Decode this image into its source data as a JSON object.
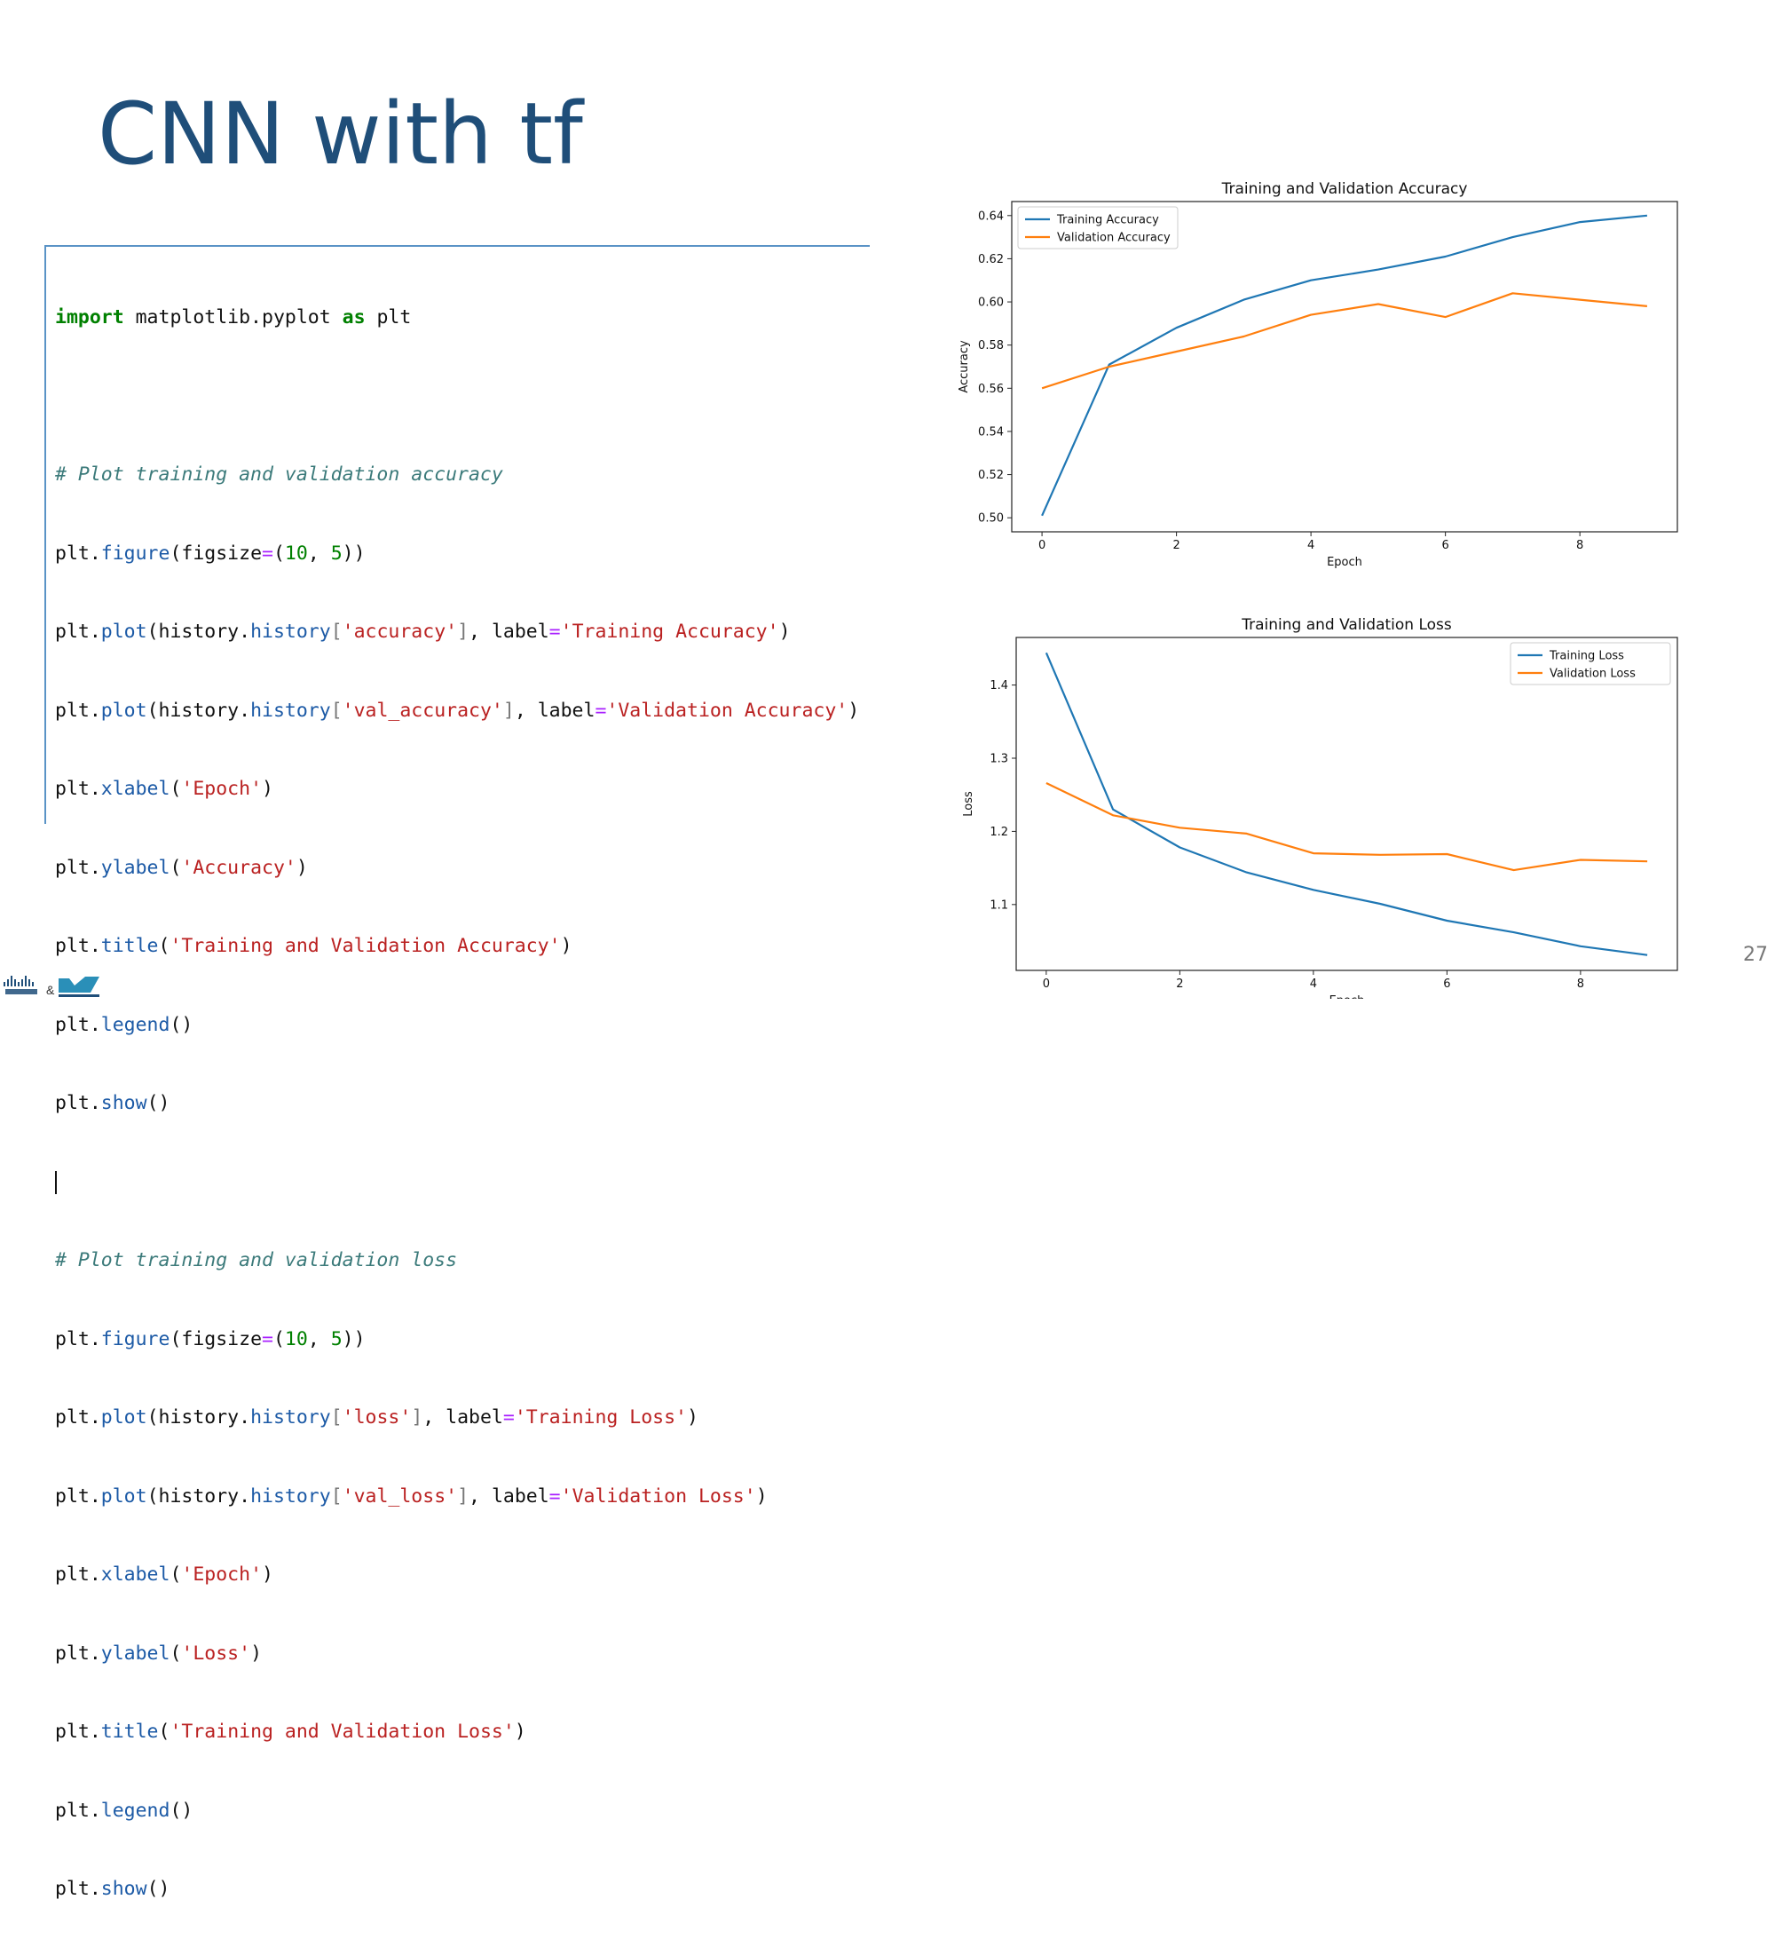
{
  "slide": {
    "title": "CNN with tf",
    "page_number": "27"
  },
  "code": {
    "import_kw": "import",
    "import_mod": " matplotlib.pyplot ",
    "as_kw": "as",
    "import_alias": " plt",
    "comment_accuracy": "# Plot training and validation accuracy",
    "comment_loss": "# Plot training and validation loss",
    "plt": "plt.",
    "figure": "figure",
    "figsize_arg": "figsize",
    "eq": "=",
    "paren_open": "(",
    "paren_close": ")",
    "num_10": "10",
    "comma_space": ", ",
    "num_5": "5",
    "plot": "plot",
    "history_prefix": "history.",
    "history": "history",
    "bracket_open": "[",
    "bracket_close": "]",
    "label_arg": "label",
    "str_accuracy": "'accuracy'",
    "str_val_accuracy": "'val_accuracy'",
    "str_training_accuracy": "'Training Accuracy'",
    "str_validation_accuracy": "'Validation Accuracy'",
    "str_loss": "'loss'",
    "str_val_loss": "'val_loss'",
    "str_training_loss": "'Training Loss'",
    "str_validation_loss": "'Validation Loss'",
    "xlabel": "xlabel",
    "ylabel": "ylabel",
    "title": "title",
    "legend": "legend",
    "show": "show",
    "str_epoch": "'Epoch'",
    "str_accuracy_label": "'Accuracy'",
    "str_loss_label": "'Loss'",
    "str_title_accuracy": "'Training and Validation Accuracy'",
    "str_title_loss": "'Training and Validation Loss'"
  },
  "chart_data": [
    {
      "type": "line",
      "title": "Training and Validation Accuracy",
      "xlabel": "Epoch",
      "ylabel": "Accuracy",
      "x": [
        0,
        1,
        2,
        3,
        4,
        5,
        6,
        7,
        8,
        9
      ],
      "xticks": [
        "0",
        "2",
        "4",
        "6",
        "8"
      ],
      "yticks": [
        "0.50",
        "0.52",
        "0.54",
        "0.56",
        "0.58",
        "0.60",
        "0.62",
        "0.64"
      ],
      "xlim": [
        -0.45,
        9.45
      ],
      "ylim": [
        0.4935,
        0.6465
      ],
      "legend_position": "upper-left",
      "grid": false,
      "series": [
        {
          "name": "Training Accuracy",
          "color": "#1f77b4",
          "values": [
            0.501,
            0.571,
            0.588,
            0.601,
            0.61,
            0.615,
            0.621,
            0.63,
            0.637,
            0.64
          ]
        },
        {
          "name": "Validation Accuracy",
          "color": "#ff7f0e",
          "values": [
            0.56,
            0.57,
            0.577,
            0.584,
            0.594,
            0.599,
            0.593,
            0.604,
            0.601,
            0.598
          ]
        }
      ]
    },
    {
      "type": "line",
      "title": "Training and Validation Loss",
      "xlabel": "Epoch",
      "ylabel": "Loss",
      "x": [
        0,
        1,
        2,
        3,
        4,
        5,
        6,
        7,
        8,
        9
      ],
      "xticks": [
        "0",
        "2",
        "4",
        "6",
        "8"
      ],
      "yticks": [
        "1.1",
        "1.2",
        "1.3",
        "1.4"
      ],
      "xlim": [
        -0.45,
        9.45
      ],
      "ylim": [
        1.01,
        1.465
      ],
      "legend_position": "upper-right",
      "grid": false,
      "series": [
        {
          "name": "Training Loss",
          "color": "#1f77b4",
          "values": [
            1.444,
            1.23,
            1.178,
            1.144,
            1.12,
            1.101,
            1.078,
            1.062,
            1.043,
            1.031
          ]
        },
        {
          "name": "Validation Loss",
          "color": "#ff7f0e",
          "values": [
            1.266,
            1.222,
            1.205,
            1.197,
            1.17,
            1.168,
            1.169,
            1.147,
            1.161,
            1.159
          ]
        }
      ]
    }
  ]
}
